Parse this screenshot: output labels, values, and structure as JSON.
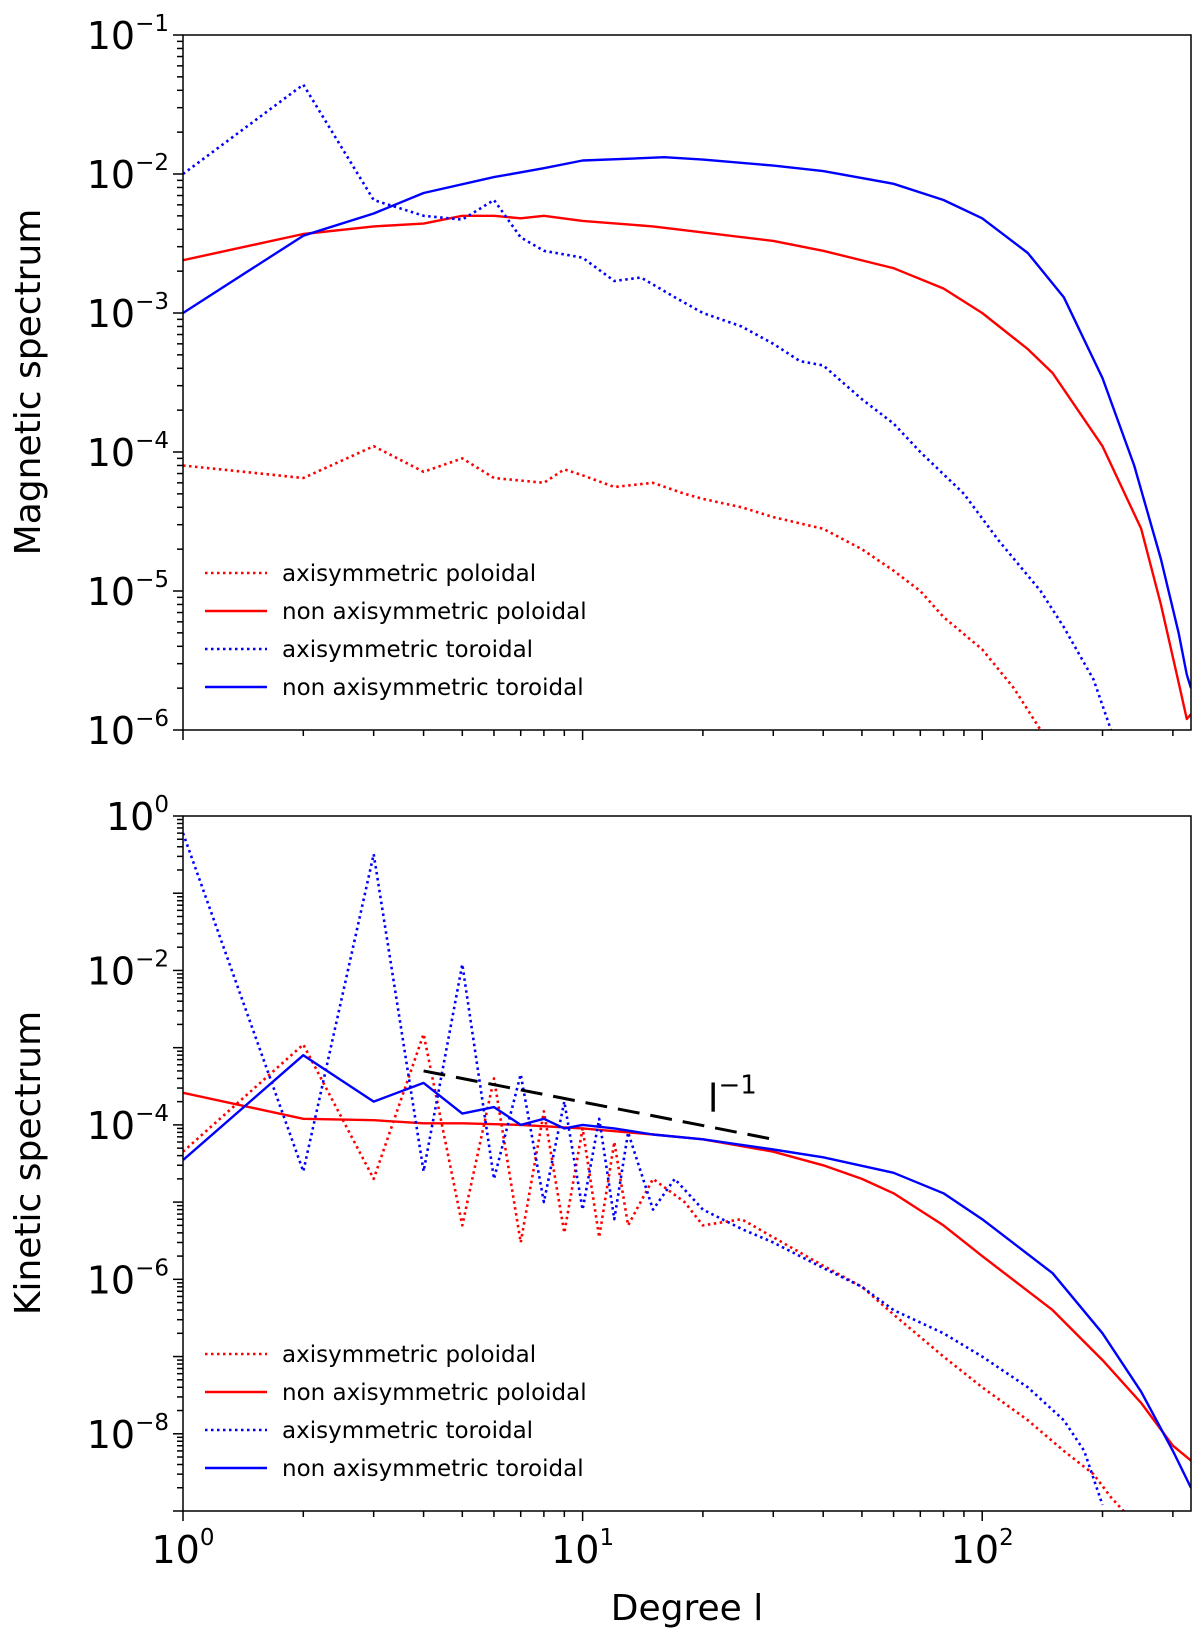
{
  "chart_data": [
    {
      "type": "line",
      "id": "magnetic",
      "title": "",
      "ylabel": "Magnetic spectrum",
      "xlabel": "",
      "xscale": "log",
      "yscale": "log",
      "xlim": [
        1,
        333
      ],
      "ylim": [
        1e-06,
        0.1
      ],
      "x_tick_labels": [],
      "y_ticks": [
        {
          "value": 1e-06,
          "base": "10",
          "exp": "−6"
        },
        {
          "value": 1e-05,
          "base": "10",
          "exp": "−5"
        },
        {
          "value": 0.0001,
          "base": "10",
          "exp": "−4"
        },
        {
          "value": 0.001,
          "base": "10",
          "exp": "−3"
        },
        {
          "value": 0.01,
          "base": "10",
          "exp": "−2"
        },
        {
          "value": 0.1,
          "base": "10",
          "exp": "−1"
        }
      ],
      "legend": {
        "placement": "lower-left"
      },
      "series": [
        {
          "name": "axisymmetric poloidal",
          "color": "#ff0000",
          "dash": "dotted",
          "points": [
            [
              1,
              8e-05
            ],
            [
              2,
              6.5e-05
            ],
            [
              3,
              0.00011
            ],
            [
              4,
              7.2e-05
            ],
            [
              5,
              9e-05
            ],
            [
              6,
              6.5e-05
            ],
            [
              8,
              6e-05
            ],
            [
              9,
              7.5e-05
            ],
            [
              10,
              6.8e-05
            ],
            [
              12,
              5.6e-05
            ],
            [
              15,
              6e-05
            ],
            [
              18,
              5e-05
            ],
            [
              20,
              4.6e-05
            ],
            [
              25,
              4e-05
            ],
            [
              30,
              3.4e-05
            ],
            [
              40,
              2.8e-05
            ],
            [
              50,
              2e-05
            ],
            [
              60,
              1.4e-05
            ],
            [
              70,
              1e-05
            ],
            [
              80,
              6.5e-06
            ],
            [
              100,
              3.8e-06
            ],
            [
              120,
              2e-06
            ],
            [
              140,
              1e-06
            ]
          ]
        },
        {
          "name": "non axisymmetric poloidal",
          "color": "#ff0000",
          "dash": "solid",
          "points": [
            [
              1,
              0.0024
            ],
            [
              2,
              0.0037
            ],
            [
              3,
              0.0042
            ],
            [
              4,
              0.0044
            ],
            [
              5,
              0.005
            ],
            [
              6,
              0.005
            ],
            [
              7,
              0.0048
            ],
            [
              8,
              0.005
            ],
            [
              10,
              0.0046
            ],
            [
              15,
              0.0042
            ],
            [
              20,
              0.0038
            ],
            [
              30,
              0.0033
            ],
            [
              40,
              0.0028
            ],
            [
              60,
              0.0021
            ],
            [
              80,
              0.0015
            ],
            [
              100,
              0.001
            ],
            [
              130,
              0.00055
            ],
            [
              150,
              0.00037
            ],
            [
              200,
              0.00011
            ],
            [
              250,
              2.8e-05
            ],
            [
              280,
              8e-06
            ],
            [
              310,
              2.2e-06
            ],
            [
              325,
              1.2e-06
            ],
            [
              333,
              1.3e-06
            ]
          ]
        },
        {
          "name": "axisymmetric toroidal",
          "color": "#0000ff",
          "dash": "dotted",
          "points": [
            [
              1,
              0.01
            ],
            [
              2,
              0.044
            ],
            [
              3,
              0.0065
            ],
            [
              4,
              0.005
            ],
            [
              5,
              0.0047
            ],
            [
              6,
              0.0065
            ],
            [
              7,
              0.0035
            ],
            [
              8,
              0.0028
            ],
            [
              10,
              0.0025
            ],
            [
              12,
              0.0017
            ],
            [
              14,
              0.0018
            ],
            [
              17,
              0.0013
            ],
            [
              20,
              0.001
            ],
            [
              25,
              0.0008
            ],
            [
              30,
              0.0006
            ],
            [
              35,
              0.00045
            ],
            [
              40,
              0.00042
            ],
            [
              50,
              0.00024
            ],
            [
              60,
              0.00016
            ],
            [
              70,
              0.0001
            ],
            [
              90,
              5e-05
            ],
            [
              110,
              2.3e-05
            ],
            [
              140,
              1e-05
            ],
            [
              160,
              5.5e-06
            ],
            [
              190,
              2.3e-06
            ],
            [
              210,
              1e-06
            ]
          ]
        },
        {
          "name": "non axisymmetric toroidal",
          "color": "#0000ff",
          "dash": "solid",
          "points": [
            [
              1,
              0.001
            ],
            [
              2,
              0.0036
            ],
            [
              3,
              0.0052
            ],
            [
              4,
              0.0073
            ],
            [
              6,
              0.0095
            ],
            [
              8,
              0.011
            ],
            [
              10,
              0.0125
            ],
            [
              14,
              0.013
            ],
            [
              16,
              0.0132
            ],
            [
              20,
              0.0127
            ],
            [
              30,
              0.0115
            ],
            [
              40,
              0.0105
            ],
            [
              60,
              0.0085
            ],
            [
              80,
              0.0065
            ],
            [
              100,
              0.0048
            ],
            [
              130,
              0.0027
            ],
            [
              160,
              0.0013
            ],
            [
              200,
              0.00034
            ],
            [
              240,
              8e-05
            ],
            [
              280,
              1.7e-05
            ],
            [
              310,
              5e-06
            ],
            [
              325,
              2.5e-06
            ],
            [
              333,
              2e-06
            ]
          ]
        }
      ]
    },
    {
      "type": "line",
      "id": "kinetic",
      "title": "",
      "ylabel": "Kinetic spectrum",
      "xlabel": "Degree l",
      "xscale": "log",
      "yscale": "log",
      "xlim": [
        1,
        333
      ],
      "ylim": [
        1e-09,
        1
      ],
      "x_ticks": [
        {
          "value": 1,
          "base": "10",
          "exp": "0"
        },
        {
          "value": 10,
          "base": "10",
          "exp": "1"
        },
        {
          "value": 100,
          "base": "10",
          "exp": "2"
        }
      ],
      "y_ticks": [
        {
          "value": 1e-08,
          "base": "10",
          "exp": "−8"
        },
        {
          "value": 1e-06,
          "base": "10",
          "exp": "−6"
        },
        {
          "value": 0.0001,
          "base": "10",
          "exp": "−4"
        },
        {
          "value": 0.01,
          "base": "10",
          "exp": "−2"
        },
        {
          "value": 1,
          "base": "10",
          "exp": "0"
        }
      ],
      "legend": {
        "placement": "lower-left"
      },
      "annotation": {
        "text": "l",
        "exp": "−1",
        "line_points": [
          [
            4,
            0.0005
          ],
          [
            30,
            6.5e-05
          ]
        ],
        "label_at": [
          20,
          0.0002
        ]
      },
      "series": [
        {
          "name": "axisymmetric poloidal",
          "color": "#ff0000",
          "dash": "dotted",
          "points": [
            [
              1,
              4.5e-05
            ],
            [
              2,
              0.0011
            ],
            [
              3,
              2e-05
            ],
            [
              4,
              0.0015
            ],
            [
              5,
              5e-06
            ],
            [
              6,
              0.0004
            ],
            [
              7,
              3e-06
            ],
            [
              8,
              0.00015
            ],
            [
              9,
              4e-06
            ],
            [
              10,
              9e-05
            ],
            [
              11,
              3.5e-06
            ],
            [
              12,
              6e-05
            ],
            [
              13,
              5e-06
            ],
            [
              15,
              2e-05
            ],
            [
              18,
              1e-05
            ],
            [
              20,
              5e-06
            ],
            [
              25,
              6e-06
            ],
            [
              30,
              3.5e-06
            ],
            [
              40,
              1.5e-06
            ],
            [
              50,
              8e-07
            ],
            [
              60,
              3.5e-07
            ],
            [
              80,
              1e-07
            ],
            [
              100,
              4e-08
            ],
            [
              130,
              1.5e-08
            ],
            [
              160,
              6e-09
            ],
            [
              190,
              3e-09
            ],
            [
              210,
              1.5e-09
            ],
            [
              230,
              9e-10
            ]
          ]
        },
        {
          "name": "non axisymmetric poloidal",
          "color": "#ff0000",
          "dash": "solid",
          "points": [
            [
              1,
              0.00026
            ],
            [
              2,
              0.00012
            ],
            [
              3,
              0.000115
            ],
            [
              4,
              0.000105
            ],
            [
              5,
              0.000105
            ],
            [
              7,
              0.0001
            ],
            [
              10,
              9e-05
            ],
            [
              15,
              7.5e-05
            ],
            [
              20,
              6.5e-05
            ],
            [
              30,
              4.5e-05
            ],
            [
              40,
              3e-05
            ],
            [
              50,
              2e-05
            ],
            [
              60,
              1.3e-05
            ],
            [
              80,
              5e-06
            ],
            [
              100,
              2e-06
            ],
            [
              150,
              4e-07
            ],
            [
              200,
              9e-08
            ],
            [
              250,
              2.5e-08
            ],
            [
              300,
              7e-09
            ],
            [
              333,
              4.5e-09
            ]
          ]
        },
        {
          "name": "axisymmetric toroidal",
          "color": "#0000ff",
          "dash": "dotted",
          "points": [
            [
              1,
              0.6
            ],
            [
              2,
              2.5e-05
            ],
            [
              3,
              0.32
            ],
            [
              4,
              2.5e-05
            ],
            [
              5,
              0.012
            ],
            [
              6,
              2e-05
            ],
            [
              7,
              0.00045
            ],
            [
              8,
              1e-05
            ],
            [
              9,
              0.0002
            ],
            [
              10,
              8e-06
            ],
            [
              11,
              0.00012
            ],
            [
              12,
              6e-06
            ],
            [
              13,
              8e-05
            ],
            [
              15,
              8e-06
            ],
            [
              17,
              2e-05
            ],
            [
              20,
              8e-06
            ],
            [
              25,
              4.5e-06
            ],
            [
              30,
              3e-06
            ],
            [
              40,
              1.4e-06
            ],
            [
              50,
              8e-07
            ],
            [
              60,
              4e-07
            ],
            [
              80,
              2e-07
            ],
            [
              100,
              1e-07
            ],
            [
              130,
              4e-08
            ],
            [
              160,
              1.5e-08
            ],
            [
              180,
              6e-09
            ],
            [
              200,
              1.2e-09
            ]
          ]
        },
        {
          "name": "non axisymmetric toroidal",
          "color": "#0000ff",
          "dash": "solid",
          "points": [
            [
              1,
              3.5e-05
            ],
            [
              2,
              0.0008
            ],
            [
              3,
              0.0002
            ],
            [
              4,
              0.00035
            ],
            [
              5,
              0.00014
            ],
            [
              6,
              0.00017
            ],
            [
              7,
              0.0001
            ],
            [
              8,
              0.00012
            ],
            [
              9,
              9e-05
            ],
            [
              10,
              0.0001
            ],
            [
              12,
              9e-05
            ],
            [
              15,
              7.5e-05
            ],
            [
              20,
              6.5e-05
            ],
            [
              30,
              4.8e-05
            ],
            [
              40,
              3.8e-05
            ],
            [
              60,
              2.4e-05
            ],
            [
              80,
              1.3e-05
            ],
            [
              100,
              6e-06
            ],
            [
              150,
              1.2e-06
            ],
            [
              200,
              2e-07
            ],
            [
              250,
              3.5e-08
            ],
            [
              300,
              6e-09
            ],
            [
              333,
              2e-09
            ]
          ]
        }
      ]
    }
  ]
}
